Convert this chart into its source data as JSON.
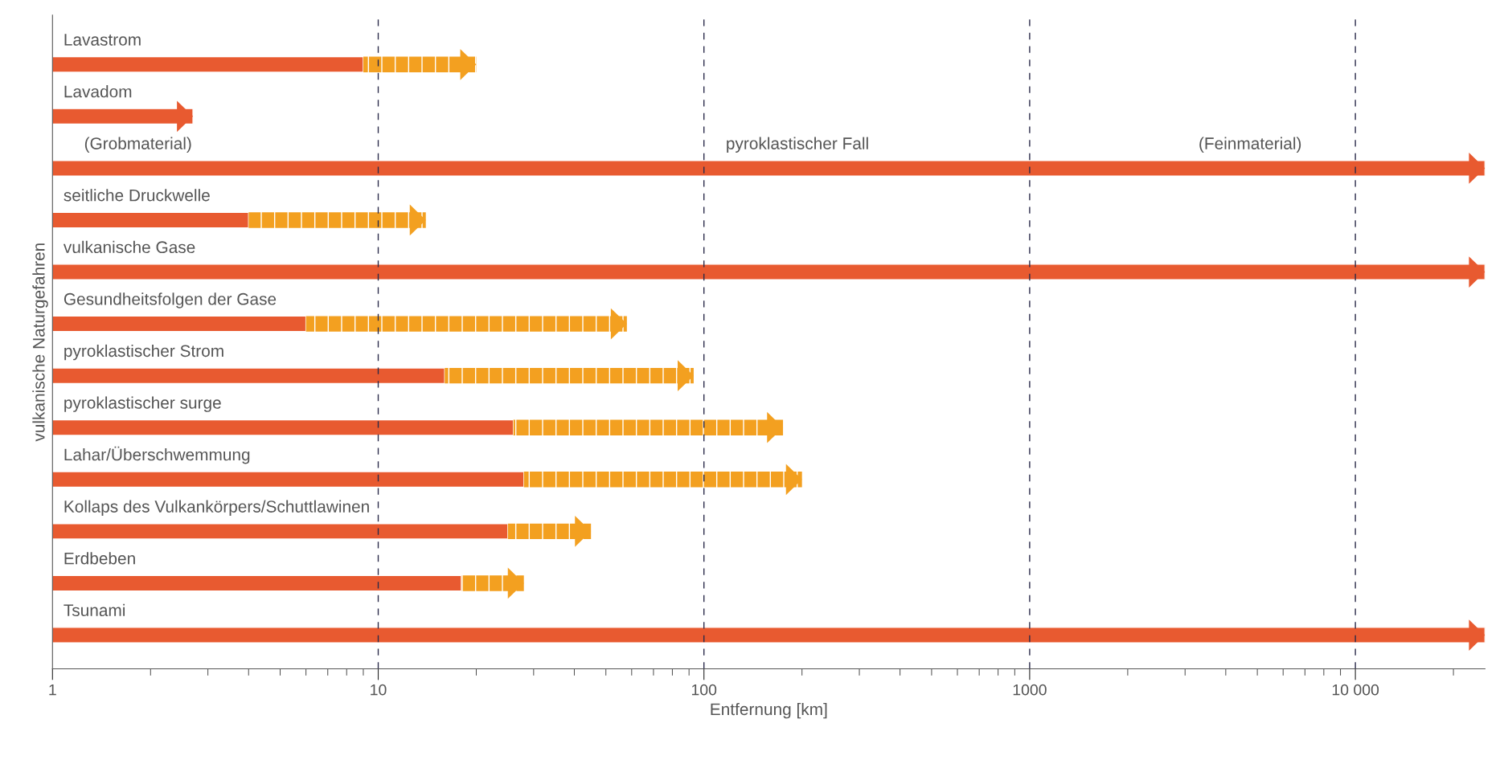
{
  "chart_data": {
    "type": "bar",
    "orientation": "horizontal",
    "stacked": true,
    "log": "x",
    "categories": [
      "Lavastrom",
      "Lavadom",
      "pyroklastischer Fall",
      "seitliche Druckwelle",
      "vulkanische Gase",
      "Gesundheitsfolgen der Gase",
      "pyroklastischer Strom",
      "pyroklastischer surge",
      "Lahar/Überschwemmung",
      "Kollaps des Vulkankörpers/Schuttlawinen",
      "Erdbeben",
      "Tsunami"
    ],
    "series": [
      {
        "color": "#e85a30",
        "line_style": "solid",
        "values": [
          9,
          2.7,
          25000,
          4,
          25000,
          6,
          16,
          26,
          28,
          25,
          18,
          25000
        ]
      },
      {
        "color": "#f3a020",
        "line_style": "dashed",
        "values": [
          11,
          null,
          null,
          10,
          null,
          52,
          77,
          149,
          172,
          20,
          10,
          null
        ]
      }
    ],
    "xlabel": "Entfernung [km]",
    "ylabel": "vulkanische Naturgefahren",
    "xlim": [
      1,
      25000
    ],
    "xticks": [
      1,
      10,
      100,
      1000,
      {
        "value": 10000,
        "label": "10 000"
      }
    ],
    "ref_lines": [
      {
        "axis": "x",
        "value": 10,
        "color": "#2b2b4a",
        "line_style": "dashed"
      },
      {
        "axis": "x",
        "value": 100,
        "color": "#2b2b4a",
        "line_style": "dashed"
      },
      {
        "axis": "x",
        "value": 1000,
        "color": "#2b2b4a",
        "line_style": "dashed"
      },
      {
        "axis": "x",
        "value": 10000,
        "color": "#2b2b4a",
        "line_style": "dashed"
      }
    ],
    "annotations": [
      "(Grobmaterial)",
      "(Feinmaterial)"
    ],
    "grid": false,
    "legend": false
  }
}
